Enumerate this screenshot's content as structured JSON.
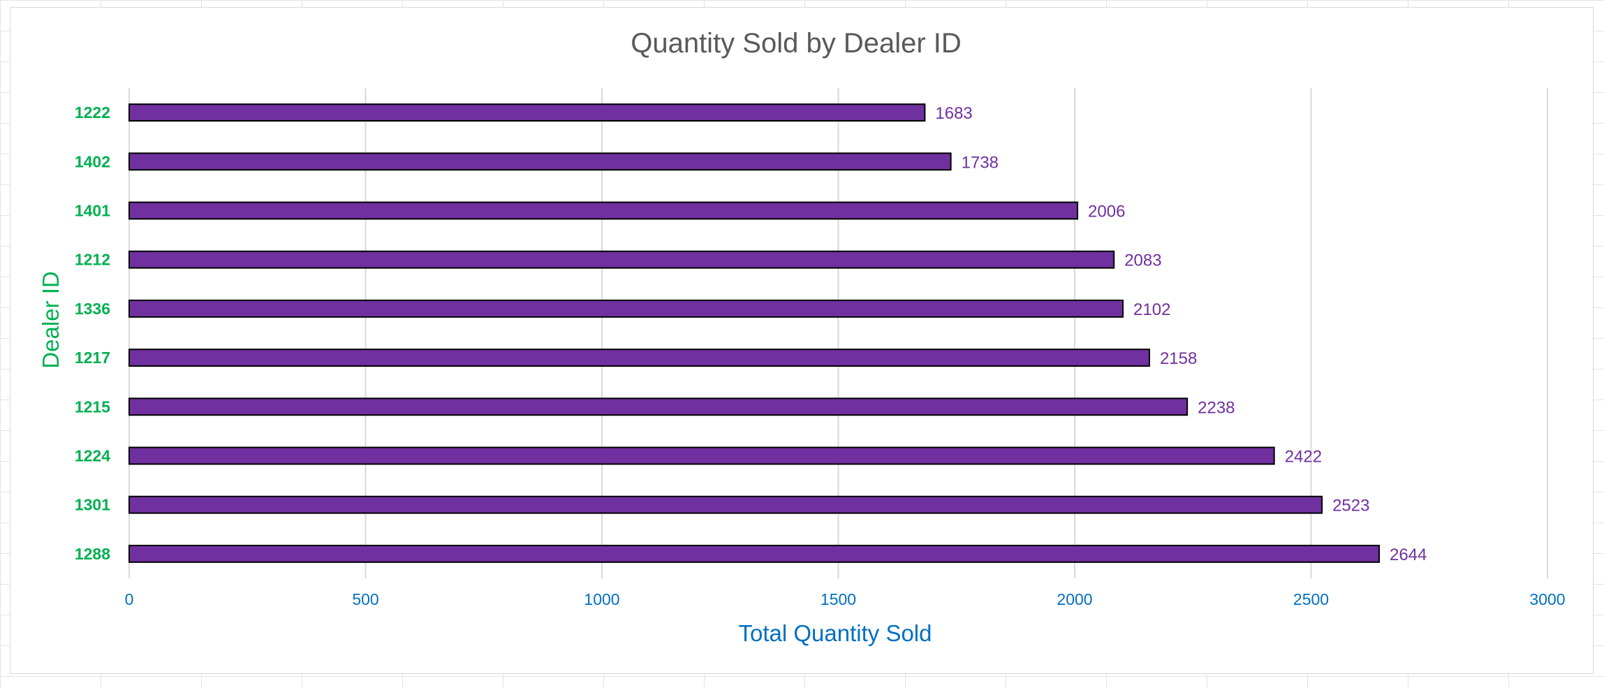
{
  "chart_data": {
    "type": "bar",
    "orientation": "horizontal",
    "title": "Quantity Sold by Dealer ID",
    "xlabel": "Total Quantity Sold",
    "ylabel": "Dealer ID",
    "categories": [
      "1222",
      "1402",
      "1401",
      "1212",
      "1336",
      "1217",
      "1215",
      "1224",
      "1301",
      "1288"
    ],
    "values": [
      1683,
      1738,
      2006,
      2083,
      2102,
      2158,
      2238,
      2422,
      2523,
      2644
    ],
    "xlim": [
      0,
      3000
    ],
    "xticks": [
      0,
      500,
      1000,
      1500,
      2000,
      2500,
      3000
    ],
    "grid": "vertical",
    "legend": "none",
    "data_labels": true
  },
  "colors": {
    "bar_fill": "#7030a0",
    "bar_border": "#000000",
    "category_label": "#00b050",
    "tick_label": "#0070c0",
    "data_label": "#7030a0",
    "title": "#595959",
    "gridline": "#d9d9d9"
  }
}
